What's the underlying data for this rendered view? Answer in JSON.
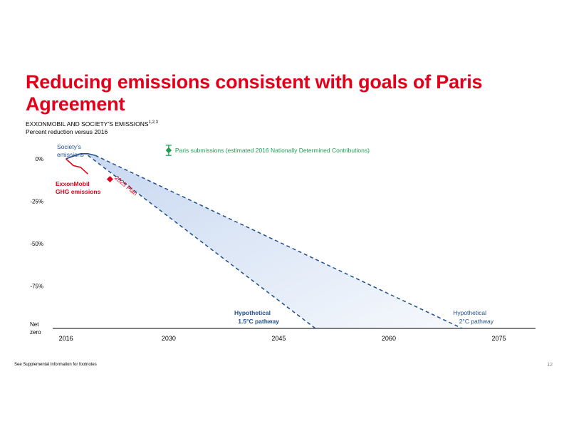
{
  "slide": {
    "title": "Reducing emissions consistent with goals of Paris Agreement",
    "footnote": "See Supplemental Information for footnotes",
    "page_number": "12"
  },
  "chart_data": {
    "type": "line",
    "heading": "EXXONMOBIL AND SOCIETY’S EMISSIONS",
    "heading_superscript": "1,2,3",
    "subheading": "Percent reduction versus 2016",
    "x_ticks": [
      "2016",
      "2030",
      "2045",
      "2060",
      "2075"
    ],
    "y_ticks": [
      "0%",
      "-25%",
      "-50%",
      "-75%",
      "Net zero"
    ],
    "xlim": [
      2014,
      2080
    ],
    "ylim": [
      -100,
      5
    ],
    "series": [
      {
        "name": "Society’s emissions",
        "label_lines": [
          "Society’s",
          "emissions"
        ],
        "color": "#1f4e8c",
        "points": [
          [
            2016,
            0
          ],
          [
            2017,
            1.5
          ],
          [
            2018,
            3
          ],
          [
            2019,
            3
          ],
          [
            2020,
            2
          ]
        ]
      },
      {
        "name": "ExxonMobil GHG emissions",
        "label_lines": [
          "ExxonMobil",
          "GHG emissions"
        ],
        "color": "#e2001a",
        "points": [
          [
            2016,
            0
          ],
          [
            2017,
            -4
          ],
          [
            2018,
            -5
          ],
          [
            2019,
            -9
          ]
        ]
      },
      {
        "name": "Hypothetical 1.5°C pathway",
        "label_lines": [
          "Hypothetical",
          "1.5°C pathway"
        ],
        "color": "#1f4e8c",
        "dashed": true,
        "points": [
          [
            2019,
            2
          ],
          [
            2050,
            -100
          ]
        ]
      },
      {
        "name": "Hypothetical 2°C pathway",
        "label_lines": [
          "Hypothetical",
          "2°C pathway"
        ],
        "color": "#1f4e8c",
        "dashed": true,
        "points": [
          [
            2020,
            2
          ],
          [
            2070,
            -100
          ]
        ]
      }
    ],
    "plan_marker": {
      "label": "2025 Plan",
      "x": 2022,
      "y": -12,
      "color": "#e2001a"
    },
    "paris_marker": {
      "label": "Paris submissions (estimated 2016 Nationally Determined Contributions)",
      "x": 2030,
      "y": 5,
      "range": [
        2,
        8
      ],
      "color": "#1b9e50"
    },
    "fill_color": "#c5d6f0"
  }
}
